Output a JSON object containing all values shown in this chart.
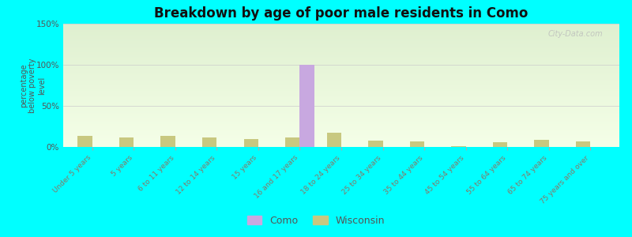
{
  "title": "Breakdown by age of poor male residents in Como",
  "categories": [
    "Under 5 years",
    "5 years",
    "6 to 11 years",
    "12 to 14 years",
    "15 years",
    "16 and 17 years",
    "18 to 24 years",
    "25 to 34 years",
    "35 to 44 years",
    "45 to 54 years",
    "55 to 64 years",
    "65 to 74 years",
    "75 years and over"
  ],
  "como_values": [
    0,
    0,
    0,
    0,
    0,
    100,
    0,
    0,
    0,
    0,
    0,
    0,
    0
  ],
  "wisconsin_values": [
    13,
    12,
    13,
    12,
    10,
    12,
    17,
    8,
    7,
    1,
    6,
    9,
    7
  ],
  "como_color": "#c8a8e0",
  "wisconsin_color": "#c8c880",
  "ylim": [
    0,
    150
  ],
  "yticks": [
    0,
    50,
    100,
    150
  ],
  "ytick_labels": [
    "0%",
    "50%",
    "100%",
    "150%"
  ],
  "ylabel": "percentage\nbelow poverty\nlevel",
  "bg_top": "#dff0d0",
  "bg_bottom": "#f5ffe8",
  "outer_background": "#00ffff",
  "bar_width": 0.35,
  "watermark": "City-Data.com"
}
